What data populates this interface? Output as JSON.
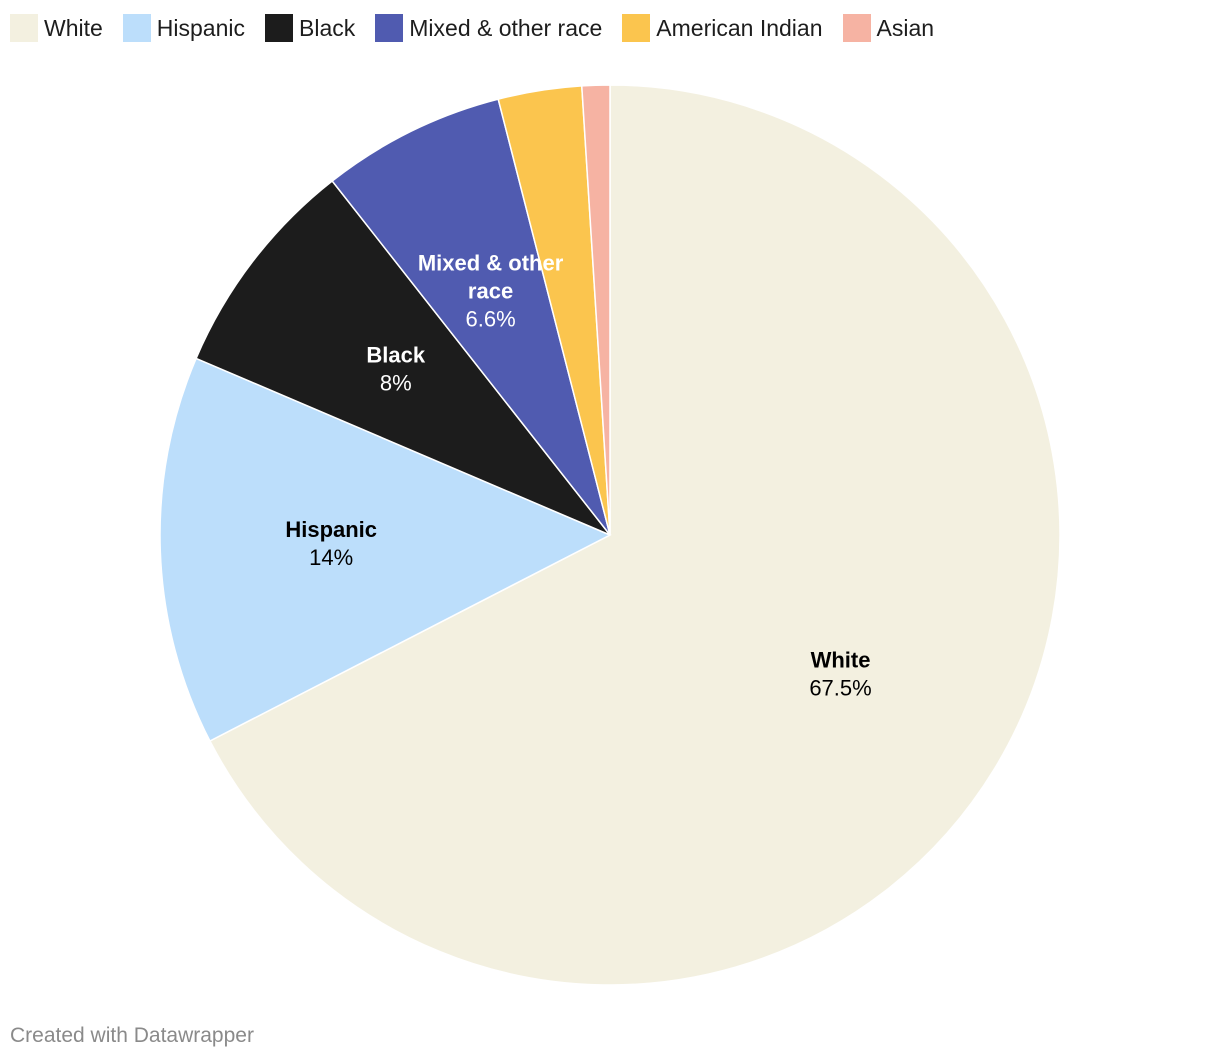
{
  "chart_data": {
    "type": "pie",
    "categories": [
      "White",
      "Hispanic",
      "Black",
      "Mixed & other race",
      "American Indian",
      "Asian"
    ],
    "values": [
      67.5,
      14,
      8,
      6.6,
      3,
      1
    ],
    "value_labels": [
      "67.5%",
      "14%",
      "8%",
      "6.6%",
      "",
      ""
    ],
    "colors": [
      "#f3f0e0",
      "#bcdefb",
      "#1c1c1c",
      "#505bb0",
      "#fbc54e",
      "#f6b3a3"
    ],
    "label_colors": [
      "#000000",
      "#000000",
      "#ffffff",
      "#ffffff",
      "#000000",
      "#000000"
    ],
    "legend_position": "top-left",
    "start_direction": "top, clockwise"
  },
  "footer": {
    "credit": "Created with Datawrapper"
  }
}
